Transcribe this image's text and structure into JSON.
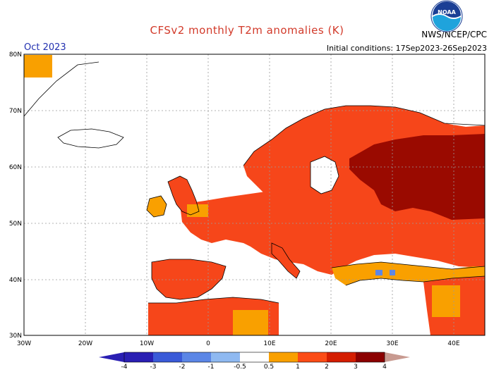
{
  "title": "CFSv2 monthly T2m anomalies (K)",
  "month": "Oct 2023",
  "agency": "NWS/NCEP/CPC",
  "logo_text": "NOAA",
  "initial_conditions": "Initial conditions: 17Sep2023-26Sep2023",
  "lat_labels": [
    "80N",
    "70N",
    "60N",
    "50N",
    "40N",
    "30N"
  ],
  "lon_labels": [
    "30W",
    "20W",
    "10W",
    "0",
    "10E",
    "20E",
    "30E",
    "40E"
  ],
  "colorbar": {
    "labels": [
      "-4",
      "-3",
      "-2",
      "-1",
      "-0.5",
      "0.5",
      "1",
      "2",
      "3",
      "4"
    ],
    "colors": [
      "#2a1fb3",
      "#3a5ad8",
      "#5b86e6",
      "#8fb9f1",
      "#ffffff",
      "#f9a000",
      "#fb4c16",
      "#d41d00",
      "#8b0000",
      "#c89a90"
    ]
  },
  "palette": {
    "land": "#f6461a",
    "orange": "#f9a000",
    "darkred": "#9a0a00",
    "blue": "#5b86e6",
    "coast": "#000000",
    "grid": "#9a9a9a"
  }
}
